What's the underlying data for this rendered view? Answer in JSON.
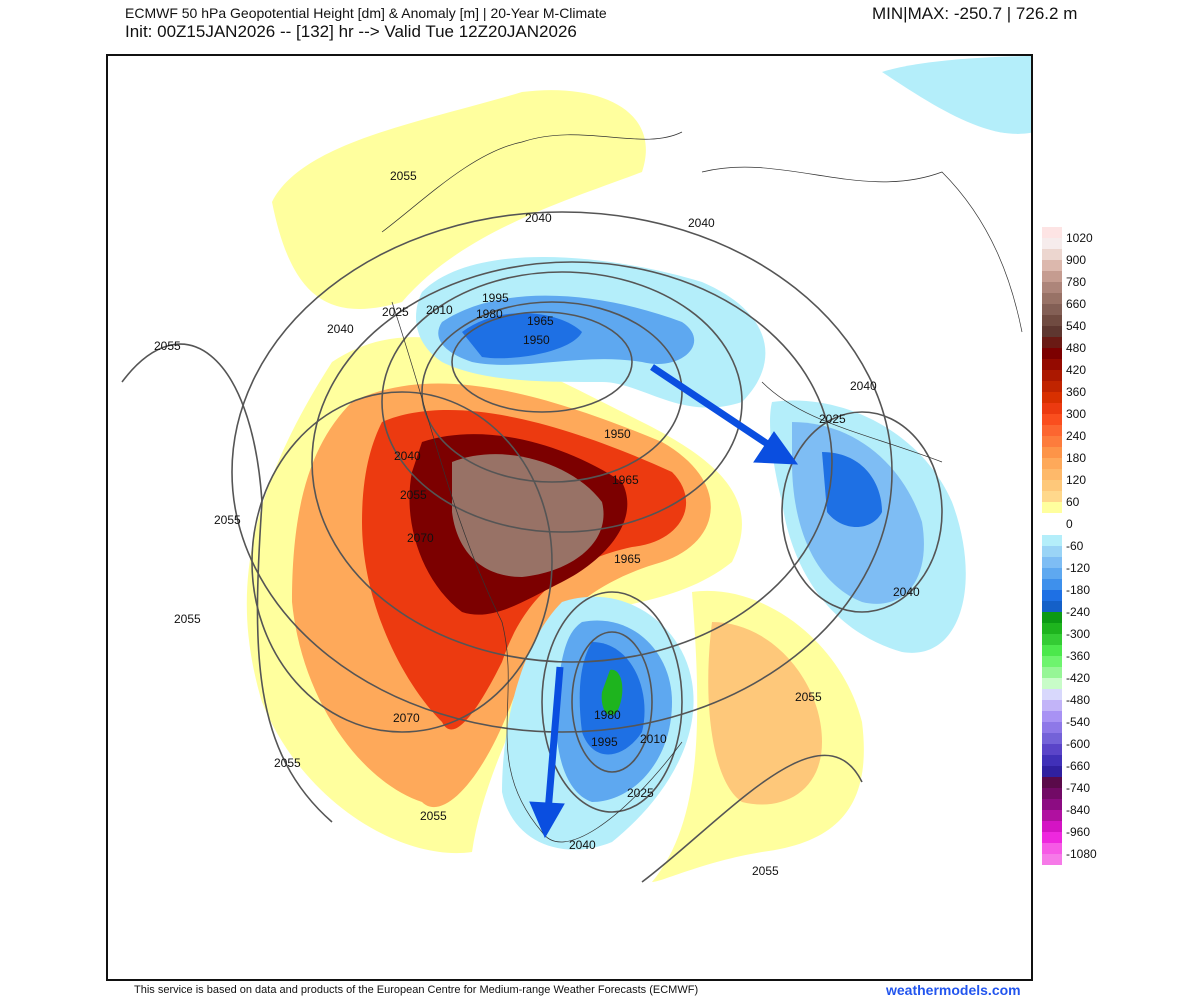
{
  "header": {
    "title": "ECMWF 50 hPa Geopotential Height [dm] & Anomaly [m] | 20-Year M-Climate",
    "subtitle": "Init: 00Z15JAN2026 -- [132] hr --> Valid Tue 12Z20JAN2026",
    "minmax": "MIN|MAX: -250.7 | 726.2 m"
  },
  "colorbar": {
    "labels": [
      "1020",
      "900",
      "780",
      "660",
      "540",
      "480",
      "420",
      "360",
      "300",
      "240",
      "180",
      "120",
      "60",
      "0",
      "-60",
      "-120",
      "-180",
      "-240",
      "-300",
      "-360",
      "-420",
      "-480",
      "-540",
      "-600",
      "-660",
      "-740",
      "-840",
      "-960",
      "-1080"
    ],
    "colors": [
      "#fde4e4",
      "#f6ecec",
      "#ecd6cf",
      "#dcb8ad",
      "#c59c90",
      "#ad857a",
      "#987266",
      "#835f55",
      "#704b41",
      "#5e3730",
      "#6a1a14",
      "#7c0000",
      "#940a00",
      "#ab1800",
      "#c02400",
      "#d83000",
      "#ec3a10",
      "#fa4e1e",
      "#fc6630",
      "#fd7c3c",
      "#fd9448",
      "#fea95a",
      "#feb96a",
      "#fec87a",
      "#ffd88c",
      "#ffff9e",
      "#ffffff",
      "#ffffff",
      "#b4eefa",
      "#9ad4f6",
      "#7ebdf4",
      "#5ea8f0",
      "#3e90ec",
      "#1e70e4",
      "#1460c8",
      "#0c9a14",
      "#1eb41e",
      "#34cc34",
      "#4ce84c",
      "#6ef46e",
      "#96f696",
      "#c8fcc8",
      "#d8d8fc",
      "#c2b4f8",
      "#a892f4",
      "#8e78e8",
      "#7462d8",
      "#5a44c8",
      "#4030b8",
      "#3020a0",
      "#5a0a4a",
      "#720a66",
      "#8c0c82",
      "#b010a0",
      "#d414c4",
      "#ee28de",
      "#f65ae6",
      "#f67ae8"
    ]
  },
  "map": {
    "contour_labels": [
      "2055",
      "2040",
      "2040",
      "2055",
      "2040",
      "2025",
      "2010",
      "1995",
      "1980",
      "1965",
      "1950",
      "1950",
      "1965",
      "1965",
      "2040",
      "2055",
      "2070",
      "2070",
      "2055",
      "2055",
      "2055",
      "2055",
      "1980",
      "1995",
      "2010",
      "2025",
      "2040",
      "2040",
      "2040",
      "2025",
      "2055",
      "2055"
    ],
    "arrow_color": "#0a4ee0"
  },
  "footer": {
    "credit": "This service is based on data and products of the European Centre for Medium-range Weather Forecasts (ECMWF)",
    "brand": "weathermodels.com"
  }
}
